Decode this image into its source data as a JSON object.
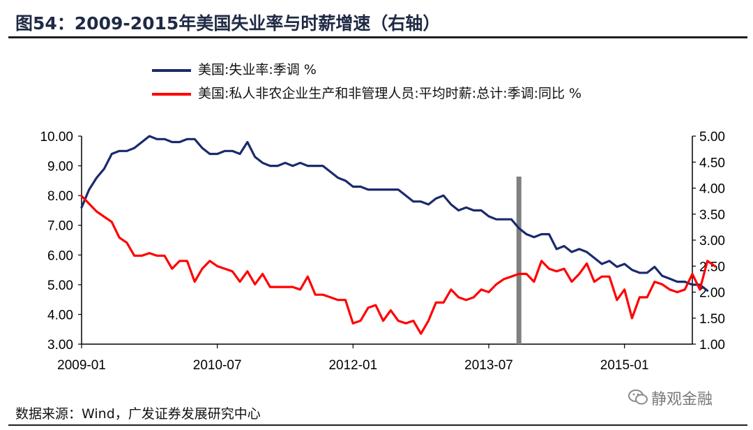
{
  "title": "图54：2009-2015年美国失业率与时薪增速（右轴）",
  "source": "数据来源：Wind，广发证券发展研究中心",
  "watermark": "静观金融",
  "colors": {
    "unemployment": "#1a2a6c",
    "wages": "#ff0000",
    "marker": "#808080"
  },
  "chart_data": {
    "type": "line",
    "x_ticks": [
      "2009-01",
      "2010-07",
      "2012-01",
      "2013-07",
      "2015-01"
    ],
    "x_range": [
      "2009-01",
      "2015-10"
    ],
    "left_axis": {
      "ticks": [
        "3.00",
        "4.00",
        "5.00",
        "6.00",
        "7.00",
        "8.00",
        "9.00",
        "10.00"
      ],
      "ylim": [
        3,
        10
      ]
    },
    "right_axis": {
      "ticks": [
        "1.00",
        "1.50",
        "2.00",
        "2.50",
        "3.00",
        "3.50",
        "4.00",
        "4.50",
        "5.00"
      ],
      "ylim": [
        1,
        5
      ]
    },
    "vertical_marker": "2013-11",
    "series": [
      {
        "name": "美国:失业率:季调 %",
        "axis": "left",
        "values": [
          7.6,
          8.2,
          8.6,
          8.9,
          9.4,
          9.5,
          9.5,
          9.6,
          9.8,
          10.0,
          9.9,
          9.9,
          9.8,
          9.8,
          9.9,
          9.9,
          9.6,
          9.4,
          9.4,
          9.5,
          9.5,
          9.4,
          9.8,
          9.3,
          9.1,
          9.0,
          9.0,
          9.1,
          9.0,
          9.1,
          9.0,
          9.0,
          9.0,
          8.8,
          8.6,
          8.5,
          8.3,
          8.3,
          8.2,
          8.2,
          8.2,
          8.2,
          8.2,
          8.0,
          7.8,
          7.8,
          7.7,
          7.9,
          8.0,
          7.7,
          7.5,
          7.6,
          7.5,
          7.5,
          7.3,
          7.2,
          7.2,
          7.2,
          6.9,
          6.7,
          6.6,
          6.7,
          6.7,
          6.2,
          6.3,
          6.1,
          6.2,
          6.1,
          5.9,
          5.7,
          5.8,
          5.6,
          5.7,
          5.5,
          5.4,
          5.4,
          5.6,
          5.3,
          5.2,
          5.1,
          5.1,
          5.0,
          5.0,
          4.8
        ]
      },
      {
        "name": "美国:私人非农企业生产和非管理人员:平均时薪:总计:季调:同比 %",
        "axis": "right",
        "values": [
          3.85,
          3.7,
          3.55,
          3.45,
          3.35,
          3.05,
          2.95,
          2.7,
          2.7,
          2.75,
          2.7,
          2.7,
          2.45,
          2.6,
          2.6,
          2.2,
          2.45,
          2.6,
          2.5,
          2.45,
          2.4,
          2.2,
          2.4,
          2.15,
          2.35,
          2.1,
          2.1,
          2.1,
          2.1,
          2.05,
          2.3,
          1.95,
          1.95,
          1.9,
          1.85,
          1.85,
          1.4,
          1.45,
          1.7,
          1.75,
          1.45,
          1.65,
          1.45,
          1.4,
          1.45,
          1.2,
          1.45,
          1.8,
          1.8,
          2.05,
          1.9,
          1.85,
          1.9,
          2.05,
          2.0,
          2.15,
          2.25,
          2.3,
          2.35,
          2.35,
          2.2,
          2.6,
          2.45,
          2.4,
          2.45,
          2.2,
          2.35,
          2.55,
          2.2,
          2.3,
          2.3,
          1.85,
          2.05,
          1.5,
          1.9,
          1.9,
          2.2,
          2.15,
          2.05,
          2.0,
          2.05,
          2.35,
          2.05,
          2.6,
          2.5
        ]
      }
    ]
  }
}
